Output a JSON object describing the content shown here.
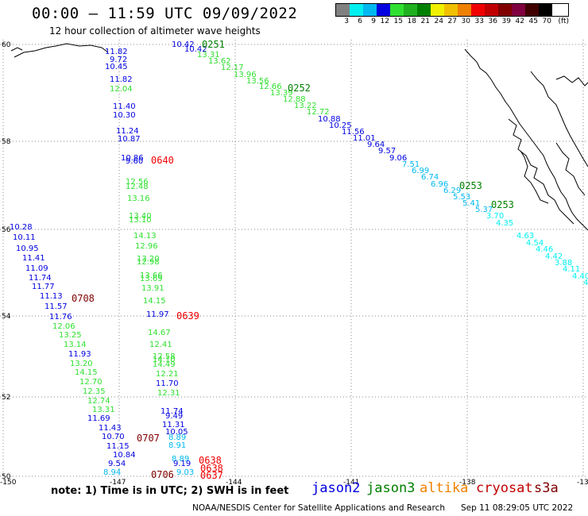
{
  "header": {
    "title": "00:00 – 11:59 UTC 09/09/2022",
    "subtitle": "12 hour collection of altimeter wave heights"
  },
  "legend": {
    "unit": "(ft)",
    "ticks": [
      "3",
      "6",
      "9",
      "12",
      "15",
      "18",
      "21",
      "24",
      "27",
      "30",
      "33",
      "36",
      "39",
      "42",
      "45",
      "70"
    ],
    "colors": [
      "#808080",
      "#00f0f0",
      "#00b8f0",
      "#0000e0",
      "#30e030",
      "#20b020",
      "#008000",
      "#f0f000",
      "#f0c000",
      "#f08000",
      "#f00000",
      "#c00000",
      "#800000",
      "#800040",
      "#400000",
      "#000000"
    ]
  },
  "axes": {
    "lat_labels": [
      "60",
      "58",
      "56",
      "54",
      "52",
      "50"
    ],
    "lon_labels": [
      "-150",
      "-147",
      "-144",
      "-141",
      "-138",
      "-13"
    ]
  },
  "map_data": {
    "pass_labels": [
      {
        "text": "0251",
        "color": "#008000"
      },
      {
        "text": "0252",
        "color": "#008000"
      },
      {
        "text": "0253",
        "color": "#008000"
      },
      {
        "text": "0253",
        "color": "#008000"
      },
      {
        "text": "0640",
        "color": "#f00000"
      },
      {
        "text": "0708",
        "color": "#800000"
      },
      {
        "text": "0639",
        "color": "#f00000"
      },
      {
        "text": "0707",
        "color": "#800000"
      },
      {
        "text": "0706",
        "color": "#800000"
      },
      {
        "text": "0638",
        "color": "#f00000"
      },
      {
        "text": "0638",
        "color": "#f00000"
      },
      {
        "text": "0637",
        "color": "#f00000"
      }
    ],
    "swh": [
      {
        "text": "10.42",
        "color": "#0000e0"
      },
      {
        "text": "10.42",
        "color": "#0000e0"
      },
      {
        "text": "13.31",
        "color": "#30e030"
      },
      {
        "text": "13.62",
        "color": "#30e030"
      },
      {
        "text": "12.17",
        "color": "#30e030"
      },
      {
        "text": "13.96",
        "color": "#30e030"
      },
      {
        "text": "13.56",
        "color": "#30e030"
      },
      {
        "text": "12.66",
        "color": "#30e030"
      },
      {
        "text": "13.39",
        "color": "#30e030"
      },
      {
        "text": "12.88",
        "color": "#30e030"
      },
      {
        "text": "13.22",
        "color": "#30e030"
      },
      {
        "text": "12.72",
        "color": "#30e030"
      },
      {
        "text": "10.88",
        "color": "#0000e0"
      },
      {
        "text": "10.25",
        "color": "#0000e0"
      },
      {
        "text": "11.56",
        "color": "#0000e0"
      },
      {
        "text": "11.01",
        "color": "#0000e0"
      },
      {
        "text": "9.64",
        "color": "#0000e0"
      },
      {
        "text": "9.57",
        "color": "#0000e0"
      },
      {
        "text": "9.06",
        "color": "#0000e0"
      },
      {
        "text": "7.51",
        "color": "#00b8f0"
      },
      {
        "text": "6.99",
        "color": "#00b8f0"
      },
      {
        "text": "6.74",
        "color": "#00b8f0"
      },
      {
        "text": "6.96",
        "color": "#00b8f0"
      },
      {
        "text": "6.29",
        "color": "#00b8f0"
      },
      {
        "text": "5.53",
        "color": "#00b8f0"
      },
      {
        "text": "5.41",
        "color": "#00b8f0"
      },
      {
        "text": "5.37",
        "color": "#00b8f0"
      },
      {
        "text": "3.70",
        "color": "#00f0f0"
      },
      {
        "text": "4.35",
        "color": "#00f0f0"
      },
      {
        "text": "4.63",
        "color": "#00f0f0"
      },
      {
        "text": "4.54",
        "color": "#00f0f0"
      },
      {
        "text": "4.46",
        "color": "#00f0f0"
      },
      {
        "text": "4.42",
        "color": "#00f0f0"
      },
      {
        "text": "3.88",
        "color": "#00f0f0"
      },
      {
        "text": "4.11",
        "color": "#00f0f0"
      },
      {
        "text": "4.40",
        "color": "#00f0f0"
      },
      {
        "text": "4",
        "color": "#00f0f0"
      },
      {
        "text": "11.82",
        "color": "#0000e0"
      },
      {
        "text": "9.72",
        "color": "#0000e0"
      },
      {
        "text": "10.45",
        "color": "#0000e0"
      },
      {
        "text": "11.82",
        "color": "#0000e0"
      },
      {
        "text": "12.04",
        "color": "#30e030"
      },
      {
        "text": "11.40",
        "color": "#0000e0"
      },
      {
        "text": "10.30",
        "color": "#0000e0"
      },
      {
        "text": "11.24",
        "color": "#0000e0"
      },
      {
        "text": "10.87",
        "color": "#0000e0"
      },
      {
        "text": "10.86",
        "color": "#0000e0"
      },
      {
        "text": "9.60",
        "color": "#0000e0"
      },
      {
        "text": "12.56",
        "color": "#30e030"
      },
      {
        "text": "12.48",
        "color": "#30e030"
      },
      {
        "text": "13.16",
        "color": "#30e030"
      },
      {
        "text": "13.40",
        "color": "#30e030"
      },
      {
        "text": "13.10",
        "color": "#30e030"
      },
      {
        "text": "14.13",
        "color": "#30e030"
      },
      {
        "text": "12.96",
        "color": "#30e030"
      },
      {
        "text": "13.20",
        "color": "#30e030"
      },
      {
        "text": "12.98",
        "color": "#30e030"
      },
      {
        "text": "13.66",
        "color": "#30e030"
      },
      {
        "text": "13.69",
        "color": "#30e030"
      },
      {
        "text": "13.91",
        "color": "#30e030"
      },
      {
        "text": "14.15",
        "color": "#30e030"
      },
      {
        "text": "11.97",
        "color": "#0000e0"
      },
      {
        "text": "14.67",
        "color": "#30e030"
      },
      {
        "text": "12.41",
        "color": "#30e030"
      },
      {
        "text": "12.58",
        "color": "#30e030"
      },
      {
        "text": "14.10",
        "color": "#30e030"
      },
      {
        "text": "14.49",
        "color": "#30e030"
      },
      {
        "text": "12.21",
        "color": "#30e030"
      },
      {
        "text": "11.70",
        "color": "#0000e0"
      },
      {
        "text": "12.31",
        "color": "#30e030"
      },
      {
        "text": "11.74",
        "color": "#0000e0"
      },
      {
        "text": "9.49",
        "color": "#0000e0"
      },
      {
        "text": "11.31",
        "color": "#0000e0"
      },
      {
        "text": "10.05",
        "color": "#0000e0"
      },
      {
        "text": "8.89",
        "color": "#00b8f0"
      },
      {
        "text": "8.91",
        "color": "#00b8f0"
      },
      {
        "text": "8.89",
        "color": "#00b8f0"
      },
      {
        "text": "9.19",
        "color": "#0000e0"
      },
      {
        "text": "9.03",
        "color": "#00b8f0"
      },
      {
        "text": "8.94",
        "color": "#00b8f0"
      },
      {
        "text": "10.28",
        "color": "#0000e0"
      },
      {
        "text": "10.11",
        "color": "#0000e0"
      },
      {
        "text": "10.95",
        "color": "#0000e0"
      },
      {
        "text": "11.41",
        "color": "#0000e0"
      },
      {
        "text": "11.09",
        "color": "#0000e0"
      },
      {
        "text": "11.74",
        "color": "#0000e0"
      },
      {
        "text": "11.77",
        "color": "#0000e0"
      },
      {
        "text": "11.13",
        "color": "#0000e0"
      },
      {
        "text": "11.57",
        "color": "#0000e0"
      },
      {
        "text": "11.76",
        "color": "#0000e0"
      },
      {
        "text": "12.06",
        "color": "#30e030"
      },
      {
        "text": "13.25",
        "color": "#30e030"
      },
      {
        "text": "13.14",
        "color": "#30e030"
      },
      {
        "text": "11.93",
        "color": "#0000e0"
      },
      {
        "text": "13.20",
        "color": "#30e030"
      },
      {
        "text": "14.15",
        "color": "#30e030"
      },
      {
        "text": "12.70",
        "color": "#30e030"
      },
      {
        "text": "12.35",
        "color": "#30e030"
      },
      {
        "text": "12.74",
        "color": "#30e030"
      },
      {
        "text": "13.31",
        "color": "#30e030"
      },
      {
        "text": "11.69",
        "color": "#0000e0"
      },
      {
        "text": "11.43",
        "color": "#0000e0"
      },
      {
        "text": "10.70",
        "color": "#0000e0"
      },
      {
        "text": "11.15",
        "color": "#0000e0"
      },
      {
        "text": "10.84",
        "color": "#0000e0"
      },
      {
        "text": "9.54",
        "color": "#0000e0"
      }
    ]
  },
  "footer": {
    "note": "note: 1) Time is in UTC; 2) SWH is in feet",
    "satellites": [
      {
        "name": "jason2",
        "color": "#0000e0"
      },
      {
        "name": "jason3",
        "color": "#008000"
      },
      {
        "name": "altika",
        "color": "#f08000"
      },
      {
        "name": "cryosat",
        "color": "#c00000"
      },
      {
        "name": "s3a",
        "color": "#800000"
      }
    ],
    "credit": "NOAA/NESDIS Center for Satellite Applications and Research",
    "timestamp": "Sep 11 08:29:05 UTC 2022"
  }
}
